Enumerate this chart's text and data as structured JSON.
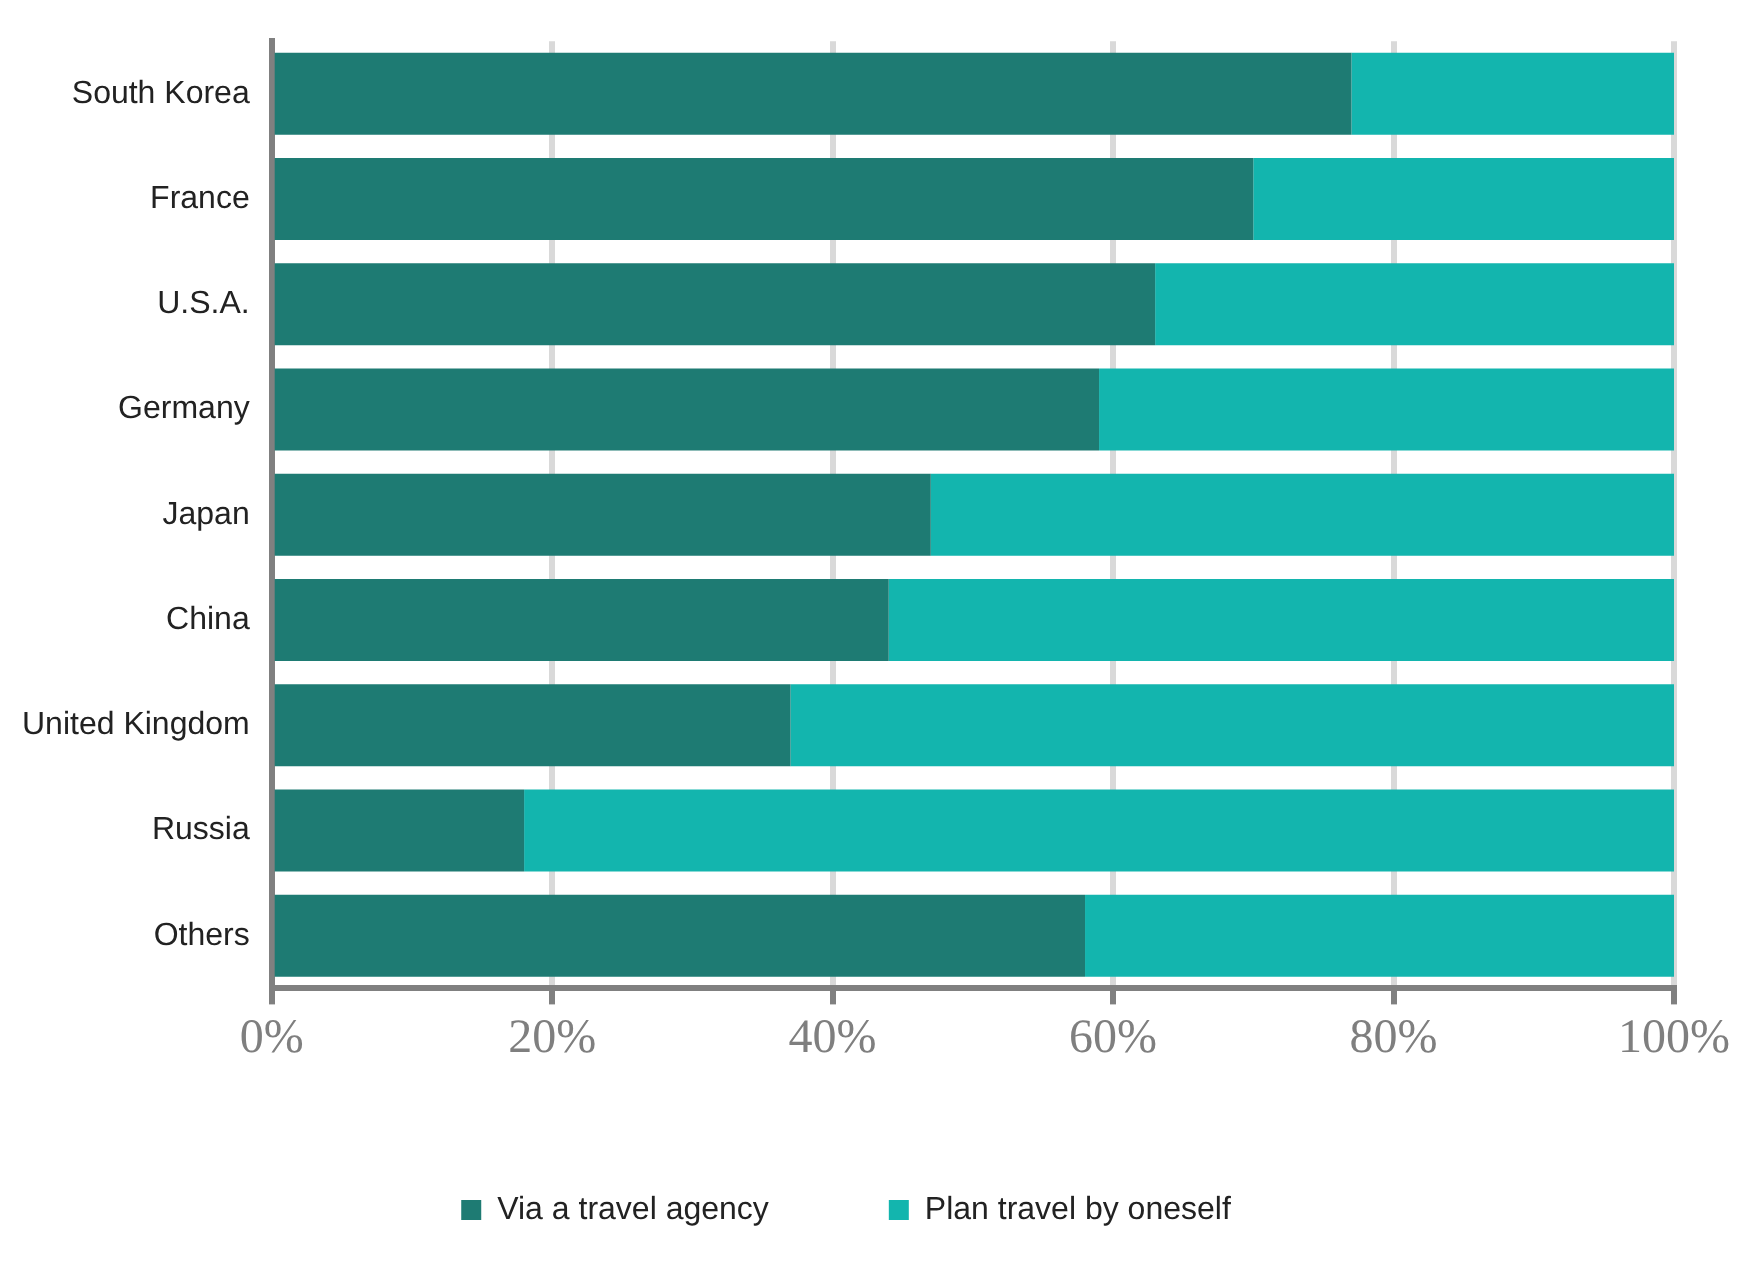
{
  "chart_data": {
    "type": "bar",
    "orientation": "horizontal",
    "stacked": true,
    "categories": [
      "South Korea",
      "France",
      "U.S.A.",
      "Germany",
      "Japan",
      "China",
      "United Kingdom",
      "Russia",
      "Others"
    ],
    "series": [
      {
        "name": "Via a travel agency",
        "color": "#1e7b73",
        "values": [
          77,
          70,
          63,
          59,
          47,
          44,
          37,
          18,
          58
        ]
      },
      {
        "name": "Plan travel by oneself",
        "color": "#13b5ae",
        "values": [
          23,
          30,
          37,
          41,
          53,
          56,
          63,
          82,
          42
        ]
      }
    ],
    "xlim": [
      0,
      100
    ],
    "xticks": [
      {
        "value": 0,
        "label": "0%"
      },
      {
        "value": 20,
        "label": "20%"
      },
      {
        "value": 40,
        "label": "40%"
      },
      {
        "value": 60,
        "label": "60%"
      },
      {
        "value": 80,
        "label": "80%"
      },
      {
        "value": 100,
        "label": "100%"
      }
    ],
    "grid": "x",
    "legend": "bottom"
  }
}
